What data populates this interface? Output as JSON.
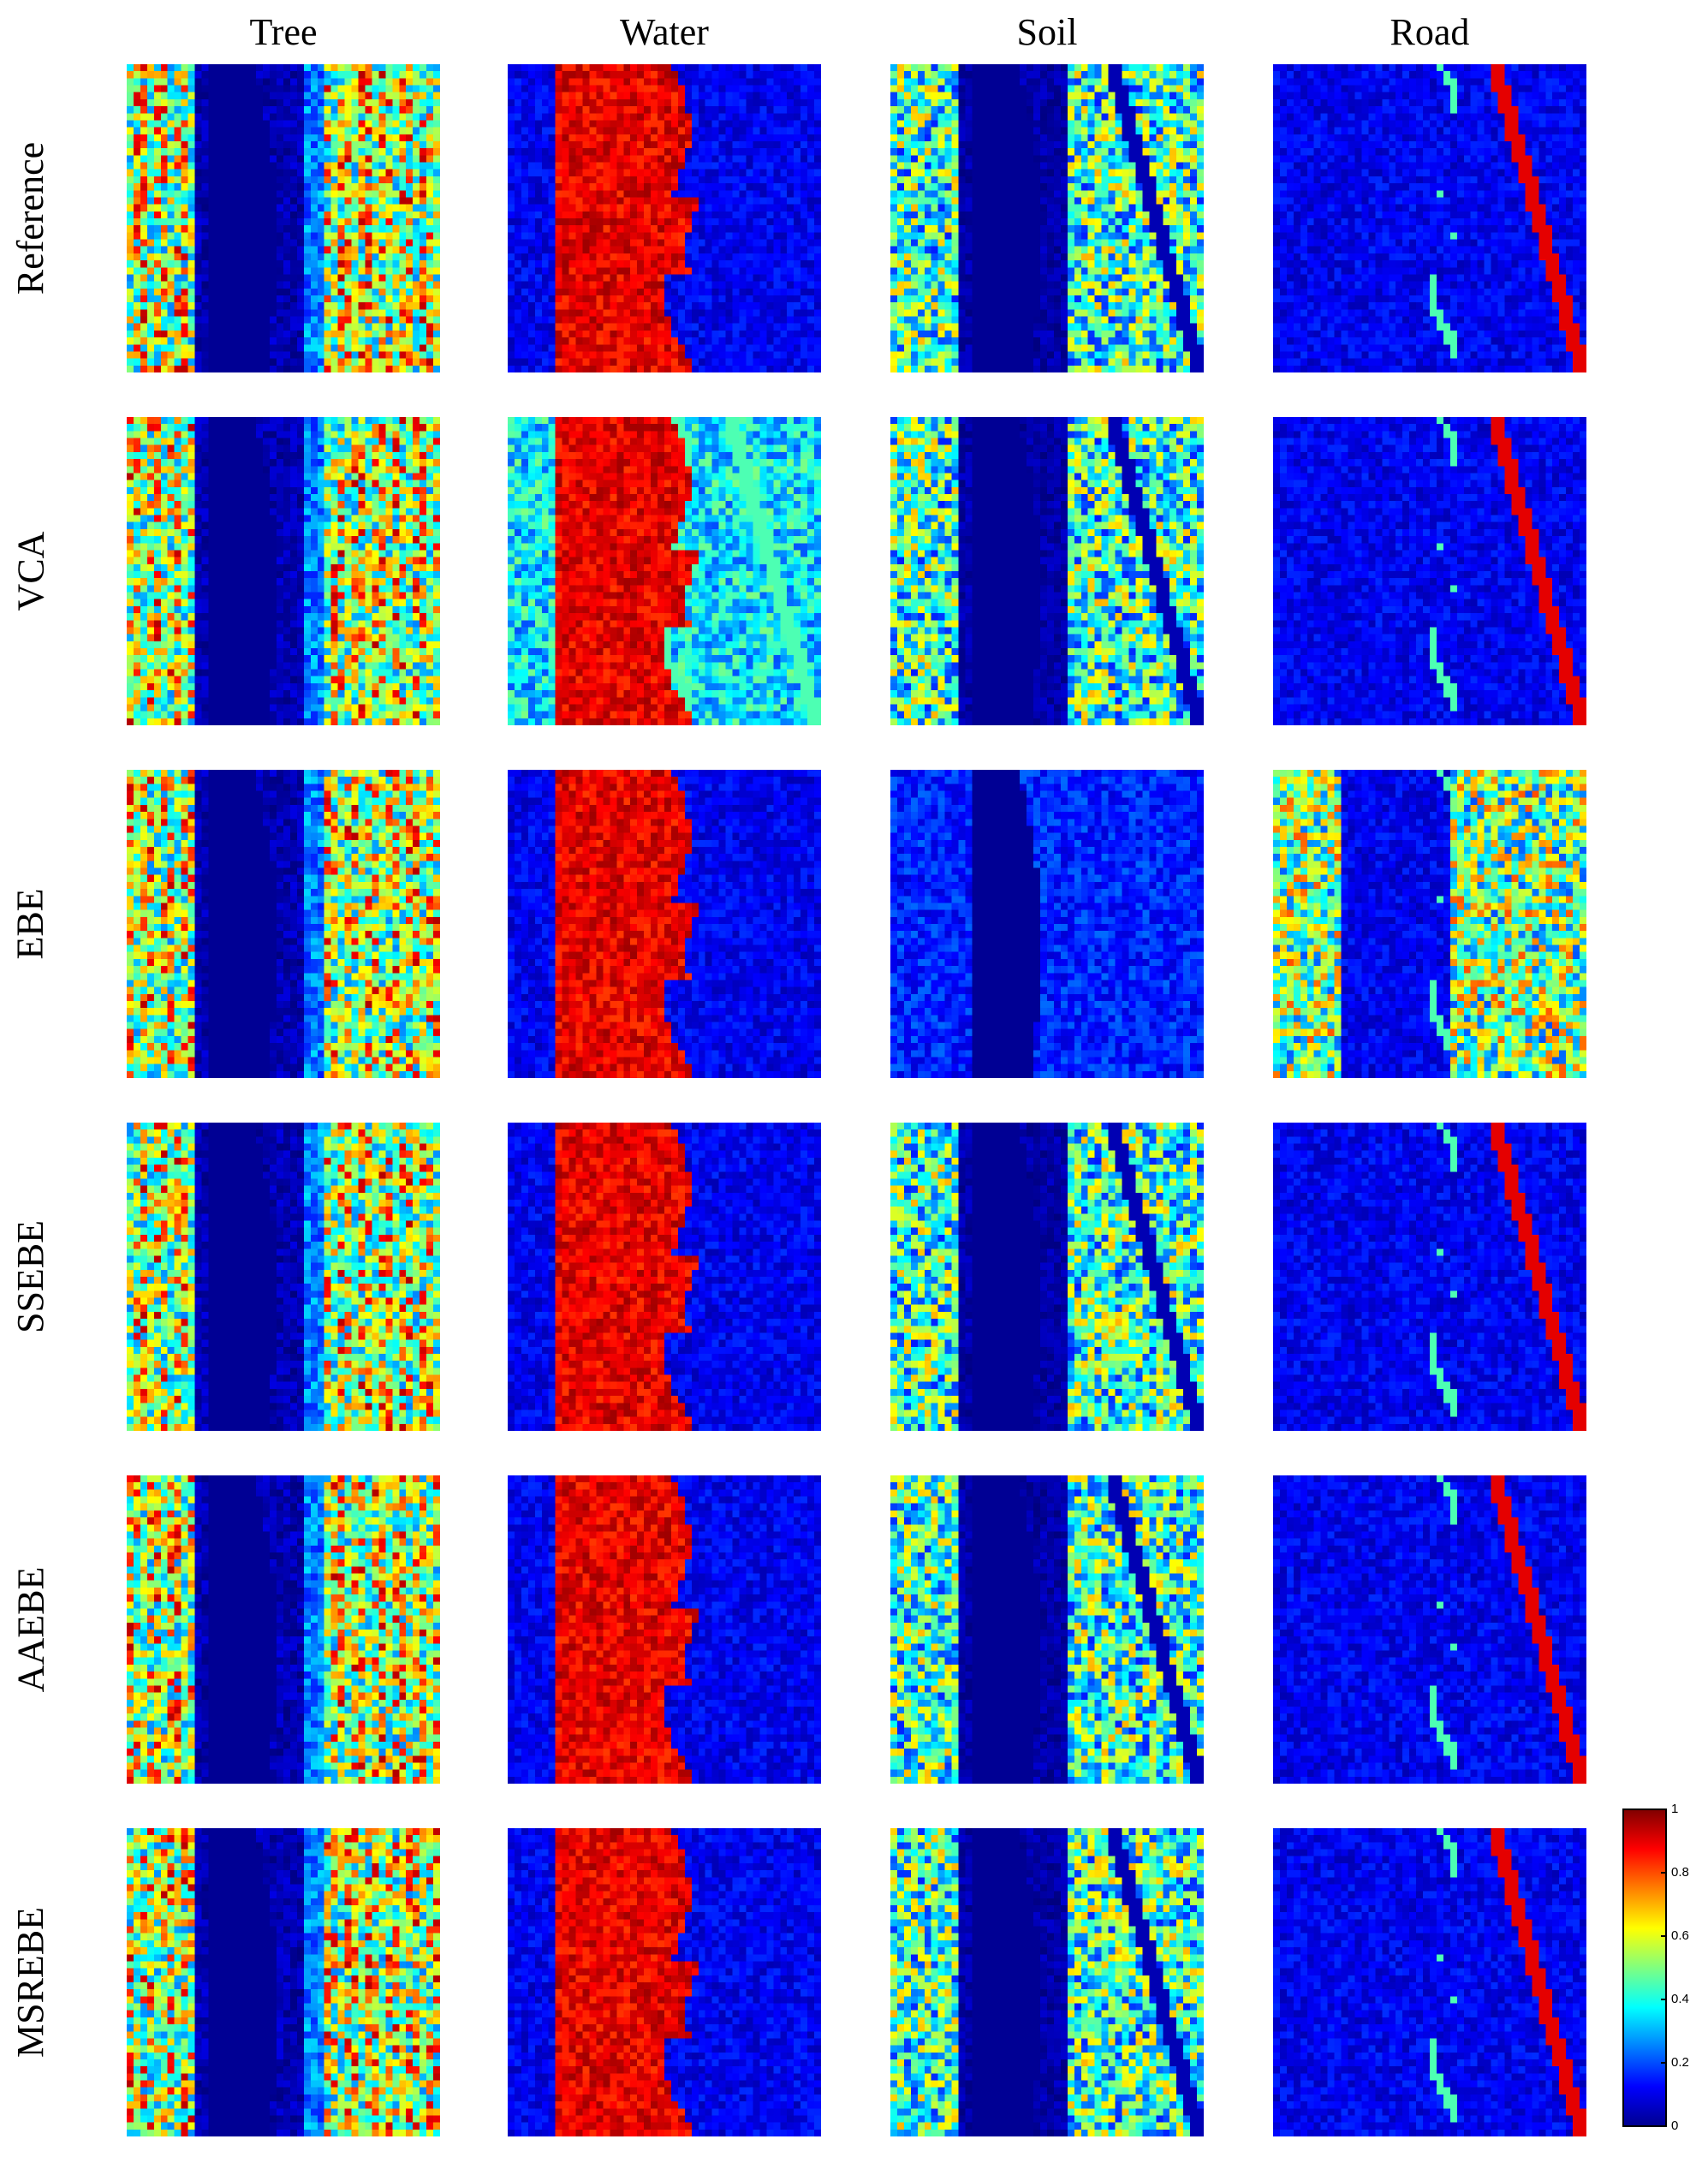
{
  "figure": {
    "columns": [
      "Tree",
      "Water",
      "Soil",
      "Road"
    ],
    "rows": [
      "Reference",
      "VCA",
      "EBE",
      "SSEBE",
      "AAEBE",
      "MSREBE"
    ],
    "colorbar": {
      "colormap": "jet",
      "min": 0,
      "max": 1,
      "ticks": [
        "0",
        "0.2",
        "0.4",
        "0.6",
        "0.8",
        "1"
      ]
    },
    "colors": {
      "background": "#00008f",
      "low": "#0000ff",
      "mid": "#00ffff",
      "high": "#ffff00",
      "max": "#800000"
    }
  }
}
